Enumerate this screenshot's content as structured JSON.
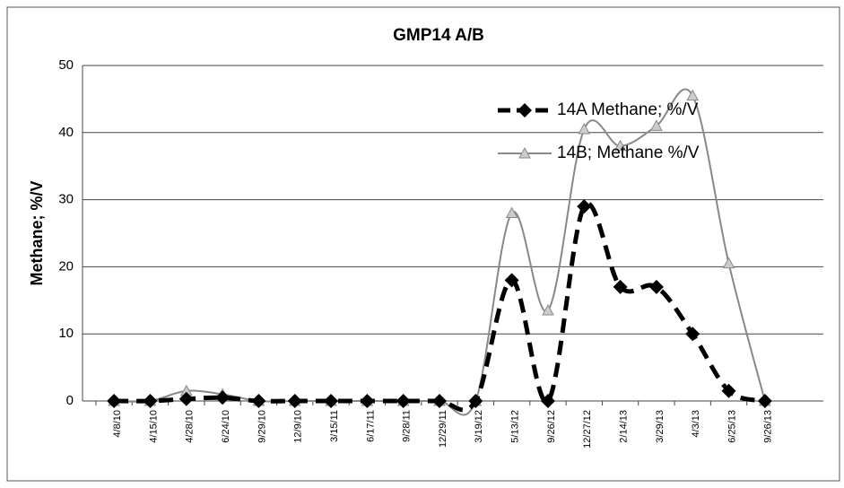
{
  "chart_data": {
    "type": "line",
    "title": "GMP14 A/B",
    "ylabel": "Methane; %/V",
    "categories": [
      "4/8/10",
      "4/15/10",
      "4/28/10",
      "6/24/10",
      "9/29/10",
      "12/9/10",
      "3/15/11",
      "6/17/11",
      "9/28/11",
      "12/29/11",
      "3/19/12",
      "5/13/12",
      "9/26/12",
      "12/27/12",
      "2/14/13",
      "3/29/13",
      "4/3/13",
      "6/25/13",
      "9/26/13"
    ],
    "series": [
      {
        "name": "14A Methane; %/V",
        "color": "#000000",
        "marker": "diamond",
        "dash": true,
        "values": [
          0,
          0,
          0.3,
          0.5,
          0,
          0,
          0,
          0,
          0,
          0,
          0,
          18,
          0,
          29,
          17,
          17,
          10,
          1.5,
          0
        ]
      },
      {
        "name": "14B; Methane %/V",
        "color": "#888888",
        "marker": "triangle",
        "dash": false,
        "values": [
          0,
          0,
          1.5,
          1,
          0,
          0,
          0,
          0,
          0,
          0,
          0,
          28,
          13.5,
          40.5,
          38,
          41,
          45.5,
          20.5,
          0
        ]
      }
    ],
    "ylim": [
      0,
      50
    ],
    "yticks": [
      0,
      10,
      20,
      30,
      40,
      50
    ],
    "grid": true,
    "smooth": true,
    "legend": "upper right"
  }
}
